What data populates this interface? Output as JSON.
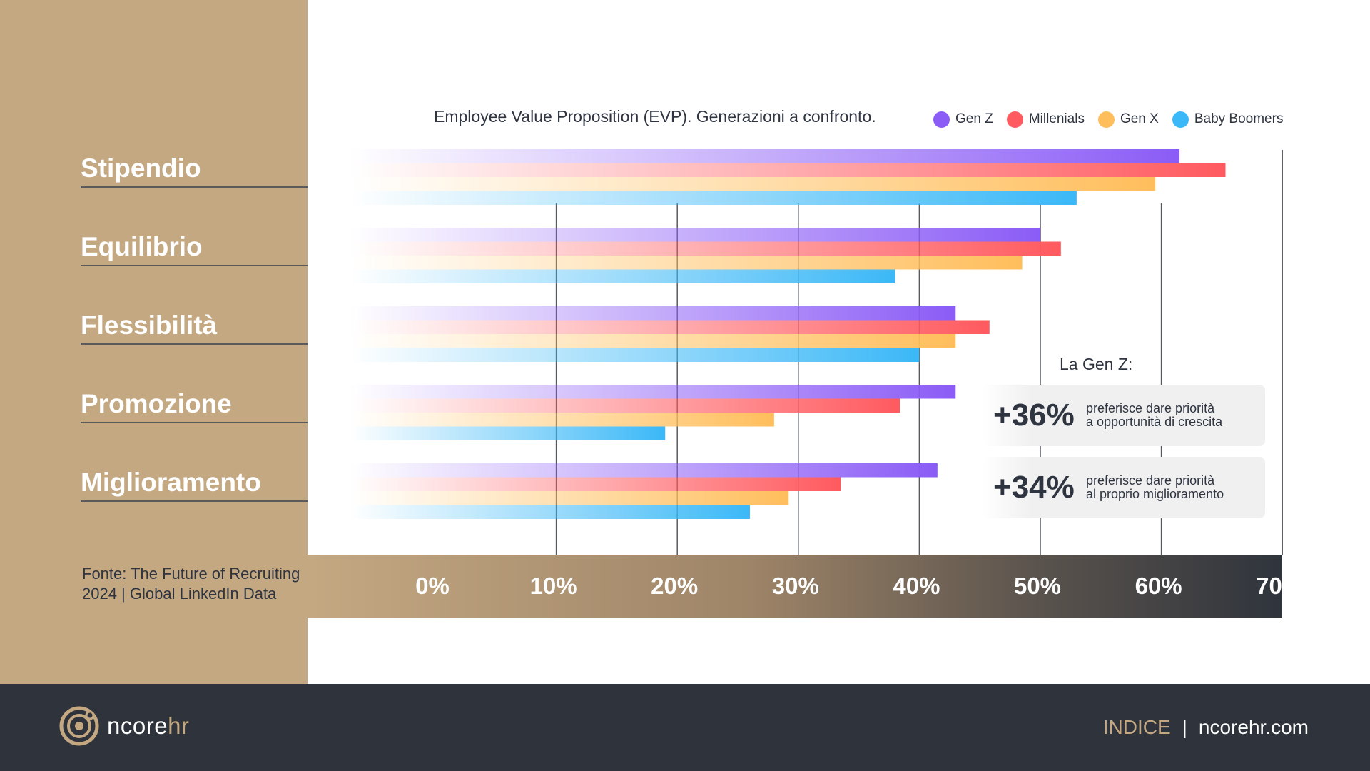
{
  "title": "Employee Value Proposition (EVP). Generazioni a confronto.",
  "source": {
    "line1": "Fonte: The Future of Recruiting",
    "line2": "2024 | Global LinkedIn Data"
  },
  "colors": {
    "gen_z": "#8b5cf6",
    "millenials": "#ff5a5f",
    "gen_x": "#ffbe5c",
    "baby_boomers": "#3bb8f7",
    "sidebar": "#c4a882",
    "footer": "#2f343c"
  },
  "chart_data": {
    "type": "bar",
    "orientation": "horizontal",
    "categories": [
      "Stipendio",
      "Equilibrio",
      "Flessibilità",
      "Promozione",
      "Miglioramento"
    ],
    "series": [
      {
        "name": "Gen Z",
        "values": [
          61.5,
          50,
          43,
          43,
          41.5
        ]
      },
      {
        "name": "Millenials",
        "values": [
          65.3,
          51.7,
          45.8,
          38.4,
          33.5
        ]
      },
      {
        "name": "Gen X",
        "values": [
          59.5,
          48.5,
          43,
          28,
          29.2
        ]
      },
      {
        "name": "Baby Boomers",
        "values": [
          53,
          38,
          40,
          19,
          26
        ]
      }
    ],
    "x_ticks": [
      "0%",
      "10%",
      "20%",
      "30%",
      "40%",
      "50%",
      "60%",
      "70%"
    ],
    "xlim": [
      0,
      70
    ],
    "grid": true,
    "legend": "top-right"
  },
  "callout": {
    "heading": "La Gen Z:",
    "stats": [
      {
        "value": "+36%",
        "line1": "preferisce dare priorità",
        "line2": "a opportunità di crescita"
      },
      {
        "value": "+34%",
        "line1": "preferisce dare priorità",
        "line2": "al proprio miglioramento"
      }
    ]
  },
  "footer": {
    "logo_main": "ncore",
    "logo_accent": "hr",
    "logo_icon": "ncorehr-logo-icon",
    "nav_index": "INDICE",
    "nav_separator": "|",
    "nav_site": "ncorehr.com"
  }
}
